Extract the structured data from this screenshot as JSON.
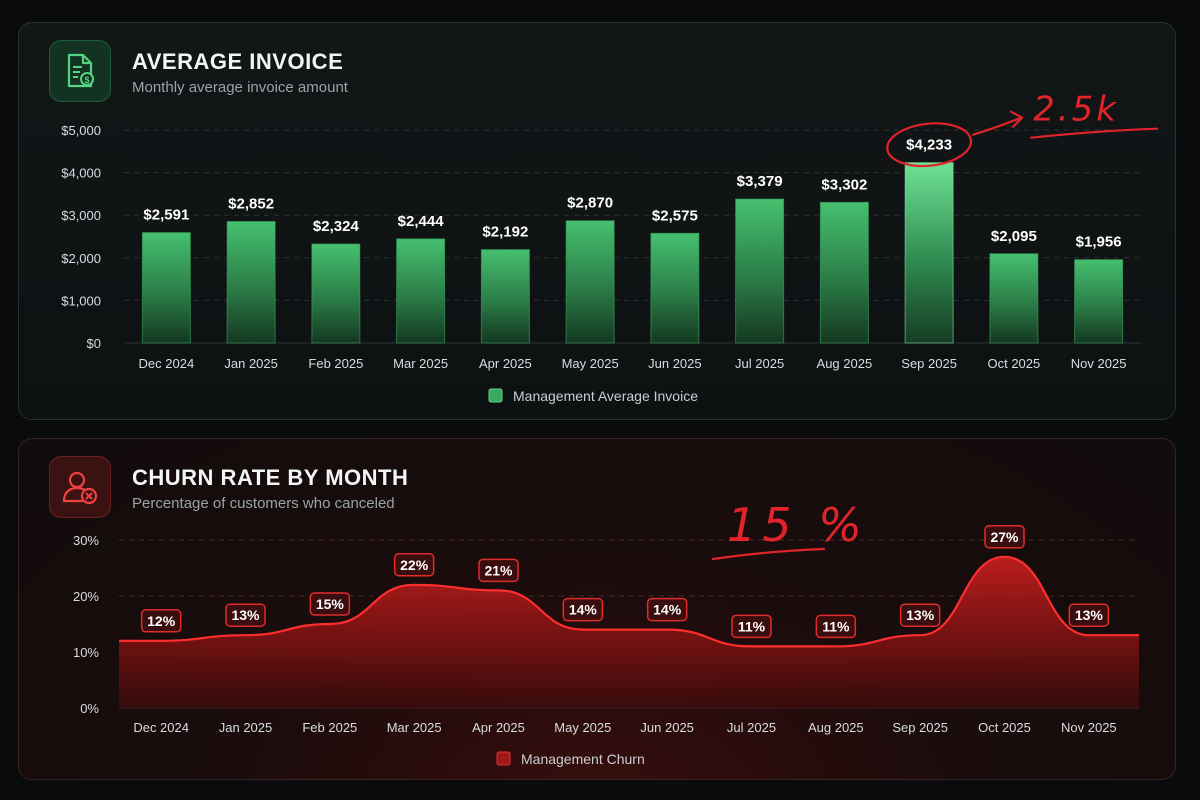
{
  "colors": {
    "invoice_accent": "#3fbf6a",
    "churn_accent": "#e52a2a",
    "annotation": "#e0242a"
  },
  "invoice_panel": {
    "title": "AVERAGE INVOICE",
    "subtitle": "Monthly average invoice amount",
    "icon": "invoice-document-icon"
  },
  "churn_panel": {
    "title": "CHURN RATE BY MONTH",
    "subtitle": "Percentage of customers who canceled",
    "icon": "user-cancel-icon"
  },
  "chart_data": [
    {
      "type": "bar",
      "categories": [
        "Dec 2024",
        "Jan 2025",
        "Feb 2025",
        "Mar 2025",
        "Apr 2025",
        "May 2025",
        "Jun 2025",
        "Jul 2025",
        "Aug 2025",
        "Sep 2025",
        "Oct 2025",
        "Nov 2025"
      ],
      "series": [
        {
          "name": "Management Average Invoice",
          "values": [
            2591,
            2852,
            2324,
            2444,
            2192,
            2870,
            2575,
            3379,
            3302,
            4233,
            2095,
            1956
          ],
          "labels": [
            "$2,591",
            "$2,852",
            "$2,324",
            "$2,444",
            "$2,192",
            "$2,870",
            "$2,575",
            "$3,379",
            "$3,302",
            "$4,233",
            "$2,095",
            "$1,956"
          ]
        }
      ],
      "yticks": [
        "$0",
        "$1,000",
        "$2,000",
        "$3,000",
        "$4,000",
        "$5,000"
      ],
      "ylim": [
        0,
        5000
      ],
      "grid": true,
      "legend_position": "bottom-center",
      "annotation": {
        "text": "2.5k",
        "target_category": "Sep 2025"
      }
    },
    {
      "type": "area",
      "categories": [
        "Dec 2024",
        "Jan 2025",
        "Feb 2025",
        "Mar 2025",
        "Apr 2025",
        "May 2025",
        "Jun 2025",
        "Jul 2025",
        "Aug 2025",
        "Sep 2025",
        "Oct 2025",
        "Nov 2025"
      ],
      "series": [
        {
          "name": "Management Churn",
          "values": [
            12,
            13,
            15,
            22,
            21,
            14,
            14,
            11,
            11,
            13,
            27,
            13
          ],
          "labels": [
            "12%",
            "13%",
            "15%",
            "22%",
            "21%",
            "14%",
            "14%",
            "11%",
            "11%",
            "13%",
            "27%",
            "13%"
          ]
        }
      ],
      "yticks": [
        "0%",
        "10%",
        "20%",
        "30%"
      ],
      "ylim": [
        0,
        30
      ],
      "grid": true,
      "legend_position": "bottom-center",
      "annotation": {
        "text": "15 %"
      }
    }
  ]
}
